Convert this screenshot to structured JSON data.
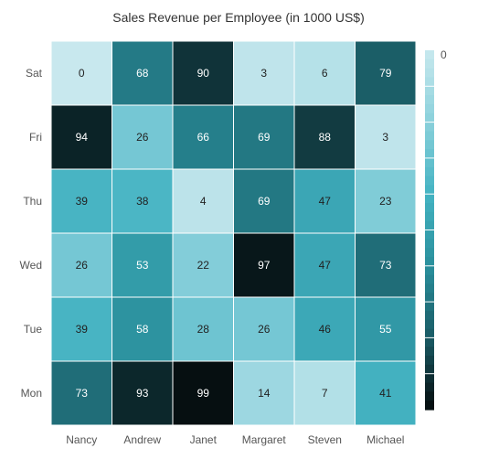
{
  "chart_data": {
    "type": "heatmap",
    "title": "Sales Revenue per Employee (in 1000 US$)",
    "xlabel": "",
    "ylabel": "",
    "x_categories": [
      "Nancy",
      "Andrew",
      "Janet",
      "Margaret",
      "Steven",
      "Michael"
    ],
    "y_categories": [
      "Mon",
      "Tue",
      "Wed",
      "Thu",
      "Fri",
      "Sat"
    ],
    "values": [
      [
        73,
        93,
        99,
        14,
        7,
        41
      ],
      [
        39,
        58,
        28,
        26,
        46,
        55
      ],
      [
        26,
        53,
        22,
        97,
        47,
        73
      ],
      [
        39,
        38,
        4,
        69,
        47,
        23
      ],
      [
        94,
        26,
        66,
        69,
        88,
        3
      ],
      [
        0,
        68,
        90,
        3,
        6,
        79
      ]
    ],
    "legend": {
      "position": "right",
      "type": "gradient",
      "visible_labels": [
        "0"
      ]
    },
    "colors": {
      "low": "#c8e8ee",
      "mid_light": "#8ad0db",
      "mid": "#44b3c2",
      "mid_dark": "#2a8f9c",
      "dark": "#1a5b64",
      "high": "#050b0d",
      "cell_border": "#ffffff",
      "text_dark": "#222222",
      "text_light": "#ffffff",
      "title": "#333333",
      "axis_label": "#555555"
    },
    "grid": false
  }
}
